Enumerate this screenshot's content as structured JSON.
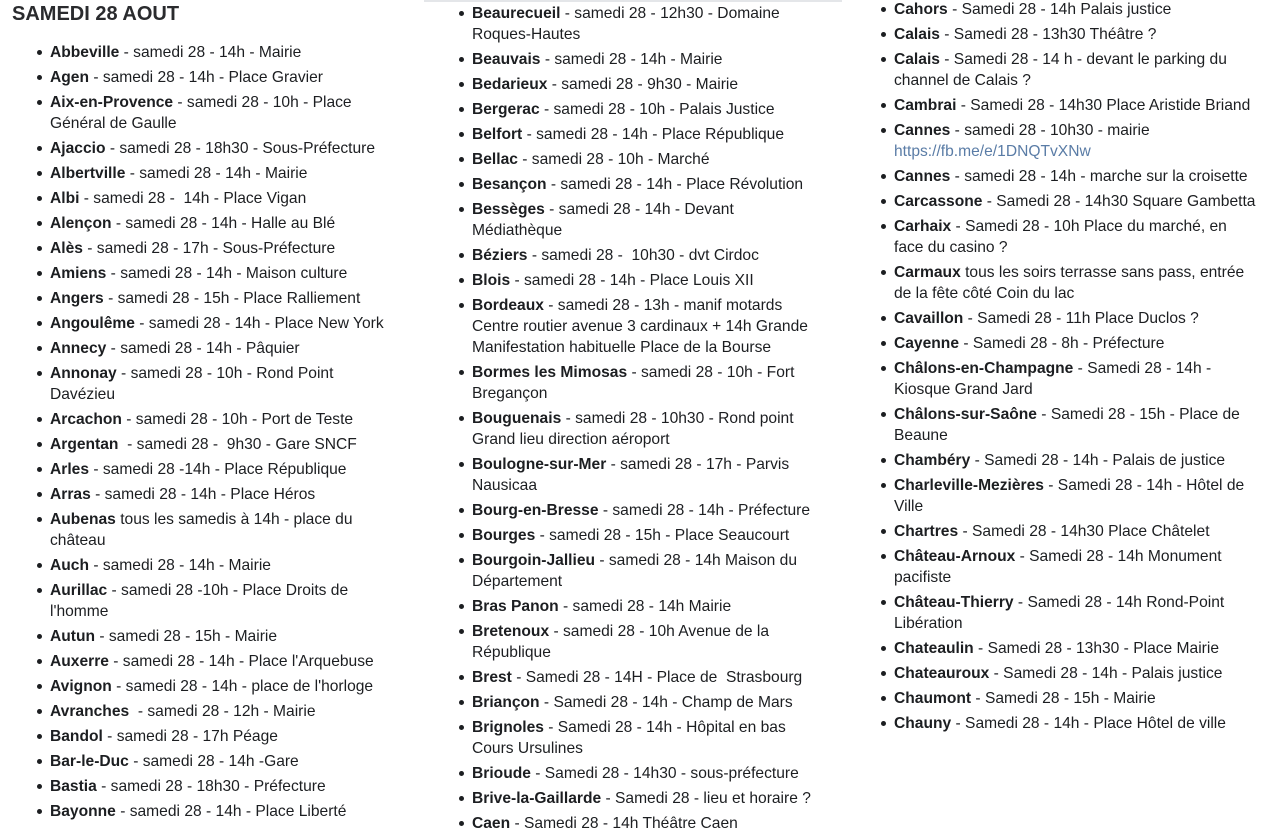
{
  "title": "SAMEDI 28 AOUT",
  "columns": [
    [
      {
        "city": "Abbeville",
        "text": " - samedi 28 - 14h - Mairie"
      },
      {
        "city": "Agen",
        "text": " - samedi 28 - 14h - Place Gravier"
      },
      {
        "city": "Aix-en-Provence",
        "text": " - samedi 28 - 10h - Place Général de Gaulle"
      },
      {
        "city": "Ajaccio",
        "text": " - samedi 28 - 18h30 - Sous-Préfecture"
      },
      {
        "city": "Albertville",
        "text": " - samedi 28 - 14h - Mairie"
      },
      {
        "city": "Albi",
        "text": " - samedi 28 -  14h - Place Vigan"
      },
      {
        "city": "Alençon",
        "text": " - samedi 28 - 14h - Halle au Blé"
      },
      {
        "city": "Alès",
        "text": " - samedi 28 - 17h - Sous-Préfecture"
      },
      {
        "city": "Amiens",
        "text": " - samedi 28 - 14h - Maison culture"
      },
      {
        "city": "Angers",
        "text": " - samedi 28 - 15h - Place Ralliement"
      },
      {
        "city": "Angoulême",
        "text": " - samedi 28 - 14h - Place New York"
      },
      {
        "city": "Annecy",
        "text": " - samedi 28 - 14h - Pâquier"
      },
      {
        "city": "Annonay",
        "text": " - samedi 28 - 10h - Rond Point Davézieu"
      },
      {
        "city": "Arcachon",
        "text": " - samedi 28 - 10h - Port de Teste"
      },
      {
        "city": "Argentan",
        "text": "  - samedi 28 -  9h30 - Gare SNCF"
      },
      {
        "city": "Arles",
        "text": " - samedi 28 -14h - Place République"
      },
      {
        "city": "Arras",
        "text": " - samedi 28 - 14h - Place Héros"
      },
      {
        "city": "Aubenas",
        "text": " tous les samedis à 14h - place du château"
      },
      {
        "city": "Auch",
        "text": " - samedi 28 - 14h - Mairie"
      },
      {
        "city": "Aurillac",
        "text": " - samedi 28 -10h - Place Droits de l'homme"
      },
      {
        "city": "Autun",
        "text": " - samedi 28 - 15h - Mairie"
      },
      {
        "city": "Auxerre",
        "text": " - samedi 28 - 14h - Place l'Arquebuse"
      },
      {
        "city": "Avignon",
        "text": " - samedi 28 - 14h - place de l'horloge"
      },
      {
        "city": "Avranches",
        "text": "  - samedi 28 - 12h - Mairie"
      },
      {
        "city": "Bandol",
        "text": " - samedi 28 - 17h Péage"
      },
      {
        "city": "Bar-le-Duc",
        "text": " - samedi 28 - 14h -Gare"
      },
      {
        "city": "Bastia",
        "text": " - samedi 28 - 18h30 - Préfecture"
      },
      {
        "city": "Bayonne",
        "text": " - samedi 28 - 14h - Place Liberté"
      }
    ],
    [
      {
        "city": "Beaurecueil",
        "text": " - samedi 28 - 12h30 - Domaine Roques-Hautes"
      },
      {
        "city": "Beauvais",
        "text": " - samedi 28 - 14h - Mairie"
      },
      {
        "city": "Bedarieux",
        "text": " - samedi 28 - 9h30 - Mairie"
      },
      {
        "city": "Bergerac",
        "text": " - samedi 28 - 10h - Palais Justice"
      },
      {
        "city": "Belfort",
        "text": " - samedi 28 - 14h - Place République"
      },
      {
        "city": "Bellac",
        "text": " - samedi 28 - 10h - Marché"
      },
      {
        "city": "Besançon",
        "text": " - samedi 28 - 14h - Place Révolution"
      },
      {
        "city": "Bessèges",
        "text": " - samedi 28 - 14h - Devant Médiathèque"
      },
      {
        "city": "Béziers",
        "text": " - samedi 28 -  10h30 - dvt Cirdoc"
      },
      {
        "city": "Blois",
        "text": " - samedi 28 - 14h - Place Louis XII"
      },
      {
        "city": "Bordeaux",
        "text": " - samedi 28 - 13h - manif motards Centre routier avenue 3 cardinaux + 14h Grande Manifestation habituelle Place de la Bourse"
      },
      {
        "city": "Bormes les Mimosas",
        "text": " - samedi 28 - 10h - Fort Bregançon"
      },
      {
        "city": "Bouguenais",
        "text": " - samedi 28 - 10h30 - Rond point Grand lieu direction aéroport"
      },
      {
        "city": "Boulogne-sur-Mer",
        "text": " - samedi 28 - 17h - Parvis Nausicaa"
      },
      {
        "city": "Bourg-en-Bresse",
        "text": " - samedi 28 - 14h - Préfecture"
      },
      {
        "city": "Bourges",
        "text": " - samedi 28 - 15h - Place Seaucourt"
      },
      {
        "city": "Bourgoin-Jallieu",
        "text": " - samedi 28 - 14h Maison du Département"
      },
      {
        "city": "Bras Panon",
        "text": " - samedi 28 - 14h Mairie"
      },
      {
        "city": "Bretenoux",
        "text": " - samedi 28 - 10h Avenue de la République"
      },
      {
        "city": "Brest",
        "text": " - Samedi 28 - 14H - Place de  Strasbourg"
      },
      {
        "city": "Briançon",
        "text": " - Samedi 28 - 14h - Champ de Mars"
      },
      {
        "city": "Brignoles",
        "text": " - Samedi 28 - 14h - Hôpital en bas Cours Ursulines"
      },
      {
        "city": "Brioude",
        "text": " - Samedi 28 - 14h30 - sous-préfecture"
      },
      {
        "city": "Brive-la-Gaillarde",
        "text": " - Samedi 28 - lieu et horaire ?"
      },
      {
        "city": "Caen",
        "text": " - Samedi 28 - 14h Théâtre Caen"
      }
    ],
    [
      {
        "city": "Cahors",
        "text": " - Samedi 28 - 14h Palais justice"
      },
      {
        "city": "Calais",
        "text": " - Samedi 28 - 13h30 Théâtre ?"
      },
      {
        "city": "Calais",
        "text": " - Samedi 28 - 14 h - devant le parking du channel de Calais ?"
      },
      {
        "city": "Cambrai",
        "text": " - Samedi 28 - 14h30 Place Aristide Briand"
      },
      {
        "city": "Cannes",
        "text": " - samedi 28 - 10h30 - mairie ",
        "link": "https://fb.me/e/1DNQTvXNw"
      },
      {
        "city": "Cannes",
        "text": " - samedi 28 - 14h - marche sur la croisette"
      },
      {
        "city": "Carcassone",
        "text": " - Samedi 28 - 14h30 Square Gambetta"
      },
      {
        "city": "Carhaix",
        "text": " - Samedi 28 - 10h Place du marché, en face du casino ?"
      },
      {
        "city": "Carmaux",
        "text": " tous les soirs terrasse sans pass, entrée de la fête côté Coin du lac"
      },
      {
        "city": "Cavaillon",
        "text": " - Samedi 28 - 11h Place Duclos ?"
      },
      {
        "city": "Cayenne",
        "text": " - Samedi 28 - 8h - Préfecture"
      },
      {
        "city": "Châlons-en-Champagne",
        "text": " - Samedi 28 - 14h - Kiosque Grand Jard"
      },
      {
        "city": "Châlons-sur-Saône",
        "text": " - Samedi 28 - 15h - Place de Beaune"
      },
      {
        "city": "Chambéry",
        "text": " - Samedi 28 - 14h - Palais de justice"
      },
      {
        "city": "Charleville-Mezières",
        "text": " - Samedi 28 - 14h - Hôtel de Ville"
      },
      {
        "city": "Chartres",
        "text": " - Samedi 28 - 14h30 Place Châtelet"
      },
      {
        "city": "Château-Arnoux",
        "text": " - Samedi 28 - 14h Monument pacifiste"
      },
      {
        "city": "Château-Thierry",
        "text": " - Samedi 28 - 14h Rond-Point Libération"
      },
      {
        "city": "Chateaulin",
        "text": " - Samedi 28 - 13h30 - Place Mairie"
      },
      {
        "city": "Chateauroux",
        "text": " - Samedi 28 - 14h - Palais justice"
      },
      {
        "city": "Chaumont",
        "text": " - Samedi 28 - 15h - Mairie"
      },
      {
        "city": "Chauny",
        "text": " - Samedi 28 - 14h - Place Hôtel de ville"
      }
    ]
  ],
  "colors": {
    "text": "#1c1e21",
    "link": "#5a7ca6"
  }
}
